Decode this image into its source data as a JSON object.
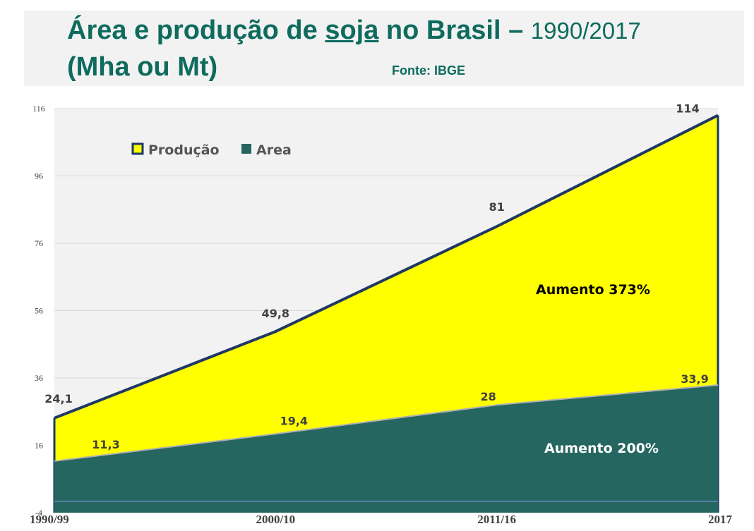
{
  "header": {
    "title_part1": "Área e produção de ",
    "title_underlined": "soja",
    "title_part2": " no Brasil – ",
    "title_years": "1990/2017",
    "title_line2": "(Mha ou Mt)",
    "source": "Fonte: IBGE"
  },
  "chart_data": {
    "type": "area",
    "categories": [
      "1990/99",
      "2000/10",
      "2011/16",
      "2017"
    ],
    "series": [
      {
        "name": "Produção",
        "values": [
          24.1,
          49.8,
          81,
          114
        ],
        "labels": [
          "24,1",
          "49,8",
          "81",
          "114"
        ],
        "color": "#ffff00",
        "stroke": "#1f3864"
      },
      {
        "name": "Area",
        "values": [
          11.3,
          19.4,
          28,
          33.9
        ],
        "labels": [
          "11,3",
          "19,4",
          "28",
          "33,9"
        ],
        "color": "#256660",
        "stroke": "#b0b0b0"
      }
    ],
    "y_ticks": [
      "116",
      "96",
      "76",
      "56",
      "36",
      "16",
      "-4"
    ],
    "ylim": [
      -4,
      116
    ],
    "grid": true,
    "legend_position": "top-left",
    "annotations": [
      {
        "text": "Aumento 373%",
        "color": "#000000"
      },
      {
        "text": "Aumento 200%",
        "color": "#ffffff"
      }
    ],
    "plot_background": "#f2f2f2"
  }
}
